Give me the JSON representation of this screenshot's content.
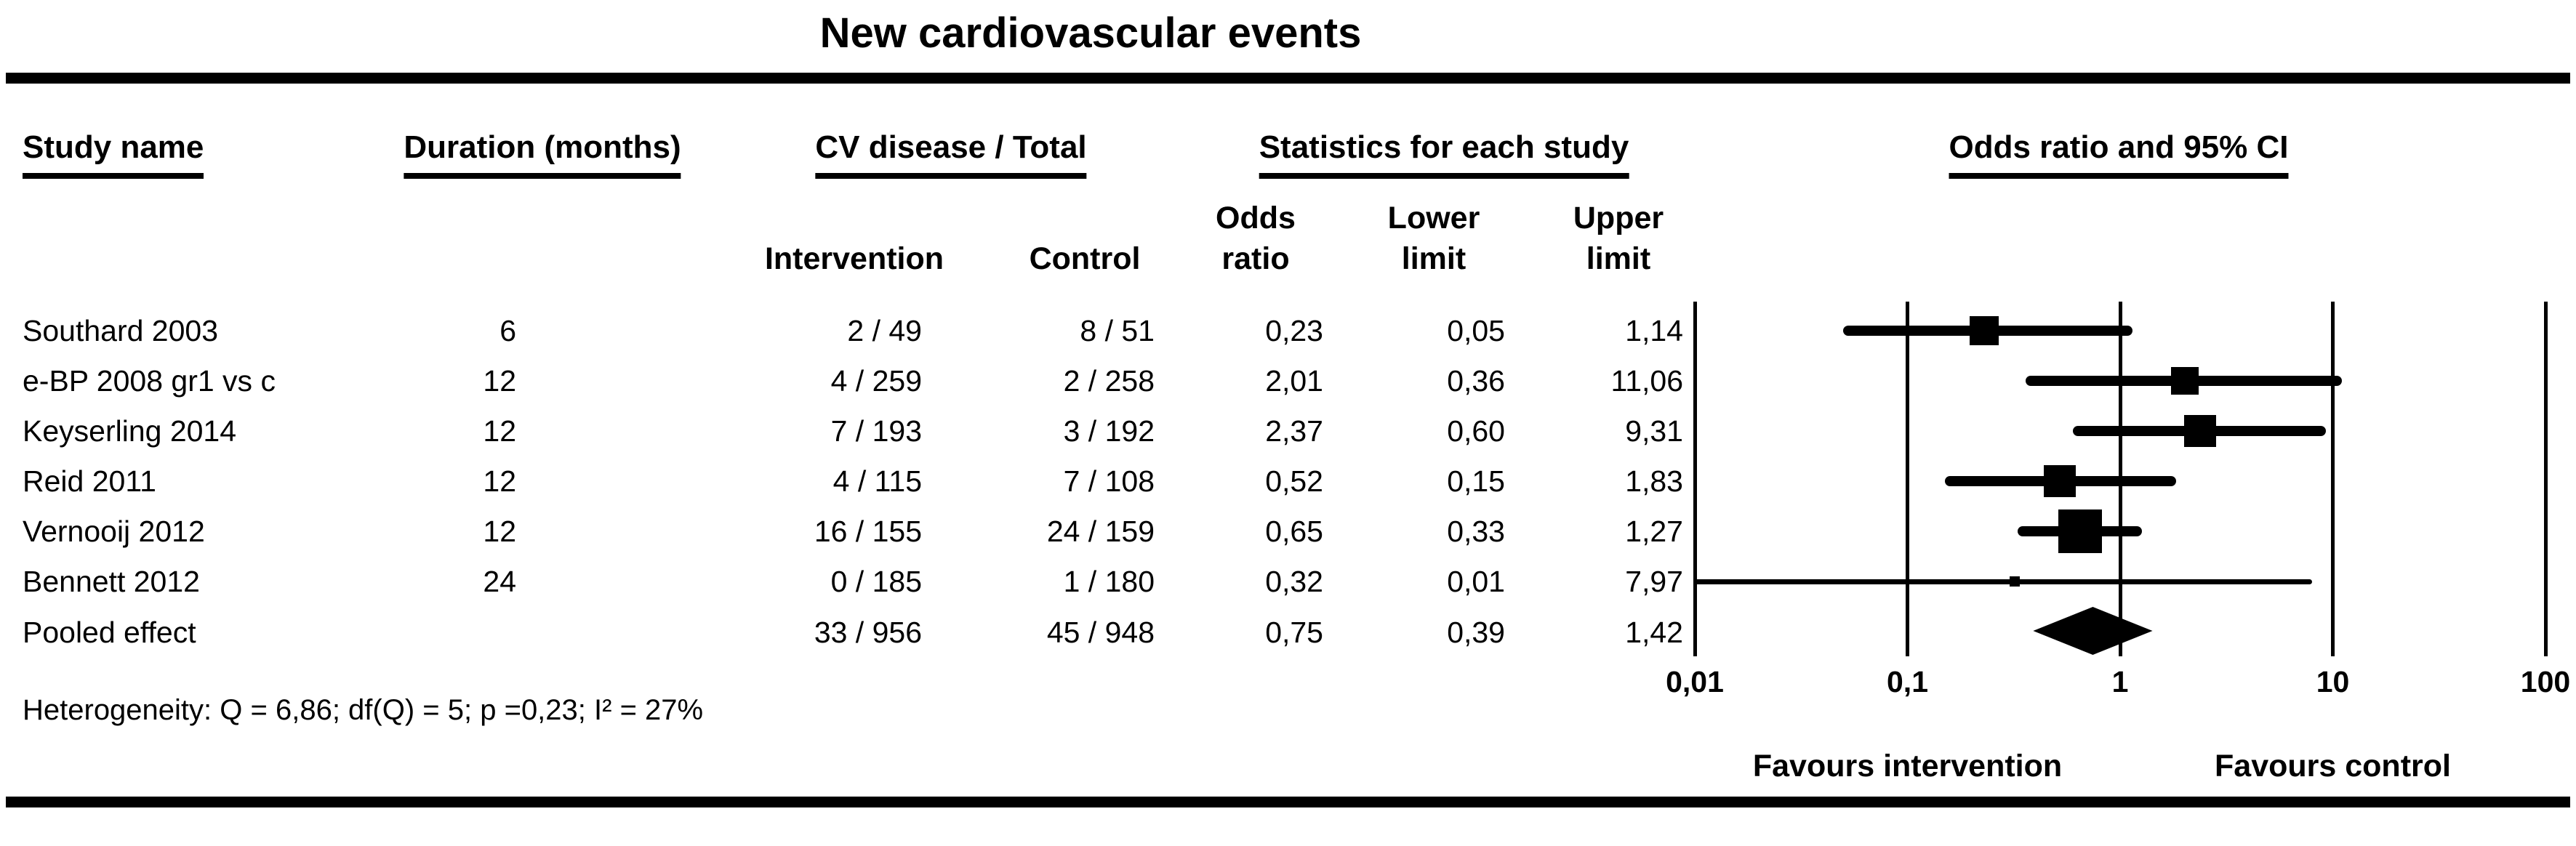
{
  "title": "New cardiovascular events",
  "table": {
    "headers": {
      "study": "Study name",
      "duration": "Duration (months)",
      "cv_total": "CV disease / Total",
      "statistics": "Statistics for each study",
      "plot": "Odds ratio and 95% CI"
    },
    "subheaders": {
      "intervention": "Intervention",
      "control": "Control",
      "odds": "Odds",
      "ratio": "ratio",
      "lower": "Lower",
      "lower_limit": "limit",
      "upper": "Upper",
      "upper_limit": "limit"
    },
    "rows": [
      {
        "study": "Southard 2003",
        "duration": "6",
        "intervention": "2 / 49",
        "control": "8 / 51",
        "odds_ratio": "0,23",
        "lower_limit": "0,05",
        "upper_limit": "1,14"
      },
      {
        "study": "e-BP 2008 gr1 vs c",
        "duration": "12",
        "intervention": "4 / 259",
        "control": "2 / 258",
        "odds_ratio": "2,01",
        "lower_limit": "0,36",
        "upper_limit": "11,06"
      },
      {
        "study": "Keyserling 2014",
        "duration": "12",
        "intervention": "7 / 193",
        "control": "3 / 192",
        "odds_ratio": "2,37",
        "lower_limit": "0,60",
        "upper_limit": "9,31"
      },
      {
        "study": "Reid 2011",
        "duration": "12",
        "intervention": "4 / 115",
        "control": "7 / 108",
        "odds_ratio": "0,52",
        "lower_limit": "0,15",
        "upper_limit": "1,83"
      },
      {
        "study": "Vernooij 2012",
        "duration": "12",
        "intervention": "16 / 155",
        "control": "24 / 159",
        "odds_ratio": "0,65",
        "lower_limit": "0,33",
        "upper_limit": "1,27"
      },
      {
        "study": "Bennett 2012",
        "duration": "24",
        "intervention": "0 / 185",
        "control": "1 / 180",
        "odds_ratio": "0,32",
        "lower_limit": "0,01",
        "upper_limit": "7,97"
      },
      {
        "study": "Pooled effect",
        "duration": "",
        "intervention": "33 / 956",
        "control": "45 / 948",
        "odds_ratio": "0,75",
        "lower_limit": "0,39",
        "upper_limit": "1,42"
      }
    ]
  },
  "footer": {
    "heterogeneity": "Heterogeneity: Q = 6,86; df(Q) = 5; p =0,23; I² = 27%",
    "favours_left": "Favours intervention",
    "favours_right": "Favours control"
  },
  "chart_data": {
    "type": "forest",
    "effect_measure": "Odds ratio",
    "x_scale": "log10",
    "x_range": [
      0.01,
      100
    ],
    "x_ticks": [
      0.01,
      0.1,
      1,
      10,
      100
    ],
    "x_tick_labels": [
      "0,01",
      "0,1",
      "1",
      "10",
      "100"
    ],
    "favours_left_anchor": 0.1,
    "favours_right_anchor": 10,
    "studies": [
      {
        "name": "Southard 2003",
        "duration_months": 6,
        "events_intervention": "2 / 49",
        "events_control": "8 / 51",
        "odds_ratio": 0.23,
        "lower": 0.05,
        "upper": 1.14,
        "marker_size": 40
      },
      {
        "name": "e-BP 2008 gr1 vs c",
        "duration_months": 12,
        "events_intervention": "4 / 259",
        "events_control": "2 / 258",
        "odds_ratio": 2.01,
        "lower": 0.36,
        "upper": 11.06,
        "marker_size": 38
      },
      {
        "name": "Keyserling 2014",
        "duration_months": 12,
        "events_intervention": "7 / 193",
        "events_control": "3 / 192",
        "odds_ratio": 2.37,
        "lower": 0.6,
        "upper": 9.31,
        "marker_size": 44
      },
      {
        "name": "Reid 2011",
        "duration_months": 12,
        "events_intervention": "4 / 115",
        "events_control": "7 / 108",
        "odds_ratio": 0.52,
        "lower": 0.15,
        "upper": 1.83,
        "marker_size": 44
      },
      {
        "name": "Vernooij 2012",
        "duration_months": 12,
        "events_intervention": "16 / 155",
        "events_control": "24 / 159",
        "odds_ratio": 0.65,
        "lower": 0.33,
        "upper": 1.27,
        "marker_size": 60
      },
      {
        "name": "Bennett 2012",
        "duration_months": 24,
        "events_intervention": "0 / 185",
        "events_control": "1 / 180",
        "odds_ratio": 0.32,
        "lower": 0.01,
        "upper": 7.97,
        "marker_size": 14
      }
    ],
    "pooled": {
      "name": "Pooled effect",
      "events_intervention": "33 / 956",
      "events_control": "45 / 948",
      "odds_ratio": 0.75,
      "lower": 0.39,
      "upper": 1.42
    },
    "colors": {
      "foreground": "#000000",
      "background": "#ffffff"
    }
  }
}
